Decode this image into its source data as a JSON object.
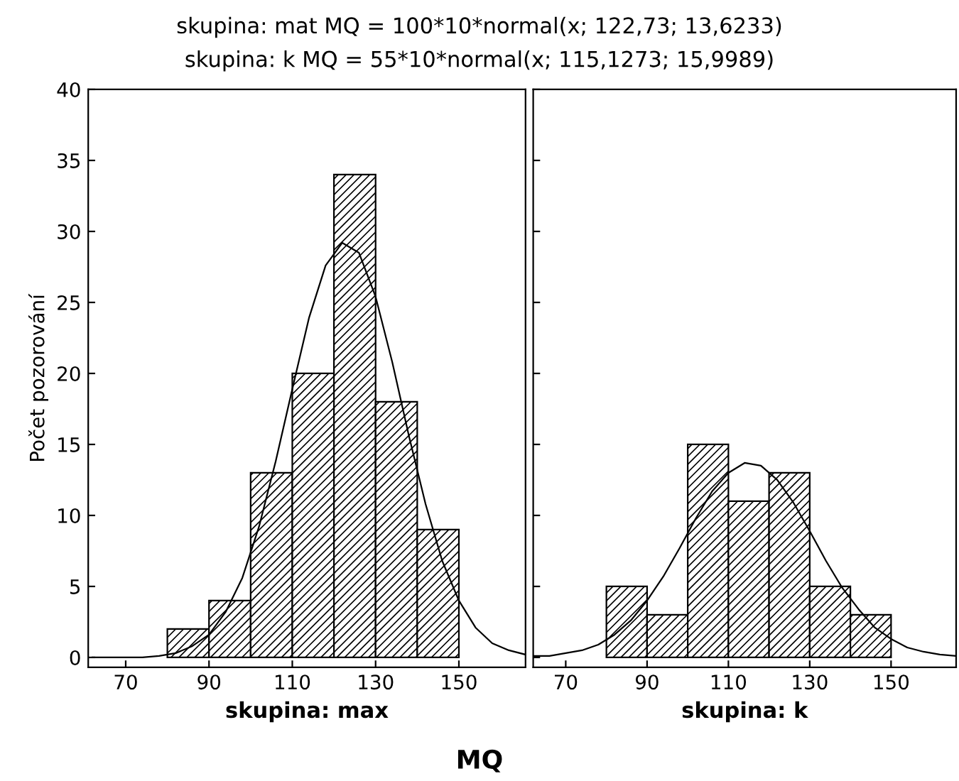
{
  "chart_data": [
    {
      "type": "histogram",
      "title": "skupina: mat MQ = 100*10*normal(x; 122,73; 13,6233)",
      "subtitle": "skupina: k MQ = 55*10*normal(x; 115,1273; 15,9989)",
      "xlabel": "skupina: max",
      "ylabel": "Počet pozorování",
      "annotations": [
        "MQ"
      ],
      "bins": [
        80,
        90,
        100,
        110,
        120,
        130,
        140,
        150
      ],
      "values": [
        2,
        4,
        13,
        20,
        34,
        18,
        9
      ],
      "color": "#000000",
      "series": [
        {
          "type": "line",
          "color": "#000000",
          "x": [
            62,
            66,
            70,
            74,
            78,
            82,
            86,
            90,
            94,
            98,
            102,
            106,
            110,
            114,
            118,
            122,
            126,
            130,
            134,
            138,
            142,
            146,
            150,
            154,
            158,
            162,
            166
          ],
          "values": [
            0.0,
            0.0,
            0.0,
            0.0,
            0.1,
            0.3,
            0.8,
            1.6,
            3.2,
            5.6,
            9.2,
            13.8,
            18.9,
            23.9,
            27.6,
            29.2,
            28.5,
            25.4,
            20.8,
            15.6,
            10.8,
            6.8,
            4.0,
            2.1,
            1.0,
            0.5,
            0.2
          ]
        }
      ],
      "xlim": [
        61,
        166
      ],
      "xticks": [
        70,
        90,
        110,
        130,
        150
      ],
      "ylim": [
        -0.7,
        40
      ],
      "yticks": [
        0,
        5,
        10,
        15,
        20,
        25,
        30,
        35,
        40
      ],
      "grid": false
    },
    {
      "type": "histogram",
      "xlabel": "skupina: k",
      "bins": [
        80,
        90,
        100,
        110,
        120,
        130,
        140,
        150
      ],
      "values": [
        5,
        3,
        15,
        11,
        13,
        5,
        3
      ],
      "color": "#000000",
      "series": [
        {
          "type": "line",
          "color": "#000000",
          "x": [
            62,
            66,
            70,
            74,
            78,
            82,
            86,
            90,
            94,
            98,
            102,
            106,
            110,
            114,
            118,
            122,
            126,
            130,
            134,
            138,
            142,
            146,
            150,
            154,
            158,
            162,
            166
          ],
          "values": [
            0.1,
            0.1,
            0.3,
            0.5,
            0.9,
            1.6,
            2.6,
            4.0,
            5.7,
            7.7,
            9.8,
            11.7,
            13.0,
            13.7,
            13.5,
            12.5,
            10.9,
            8.9,
            6.8,
            4.9,
            3.4,
            2.1,
            1.3,
            0.7,
            0.4,
            0.2,
            0.1
          ]
        }
      ],
      "xlim": [
        62,
        166
      ],
      "xticks": [
        70,
        90,
        110,
        130,
        150
      ],
      "ylim": [
        -0.7,
        40
      ],
      "yticks": [
        0,
        5,
        10,
        15,
        20,
        25,
        30,
        35,
        40
      ],
      "tick_labels": "x",
      "grid": false
    }
  ]
}
